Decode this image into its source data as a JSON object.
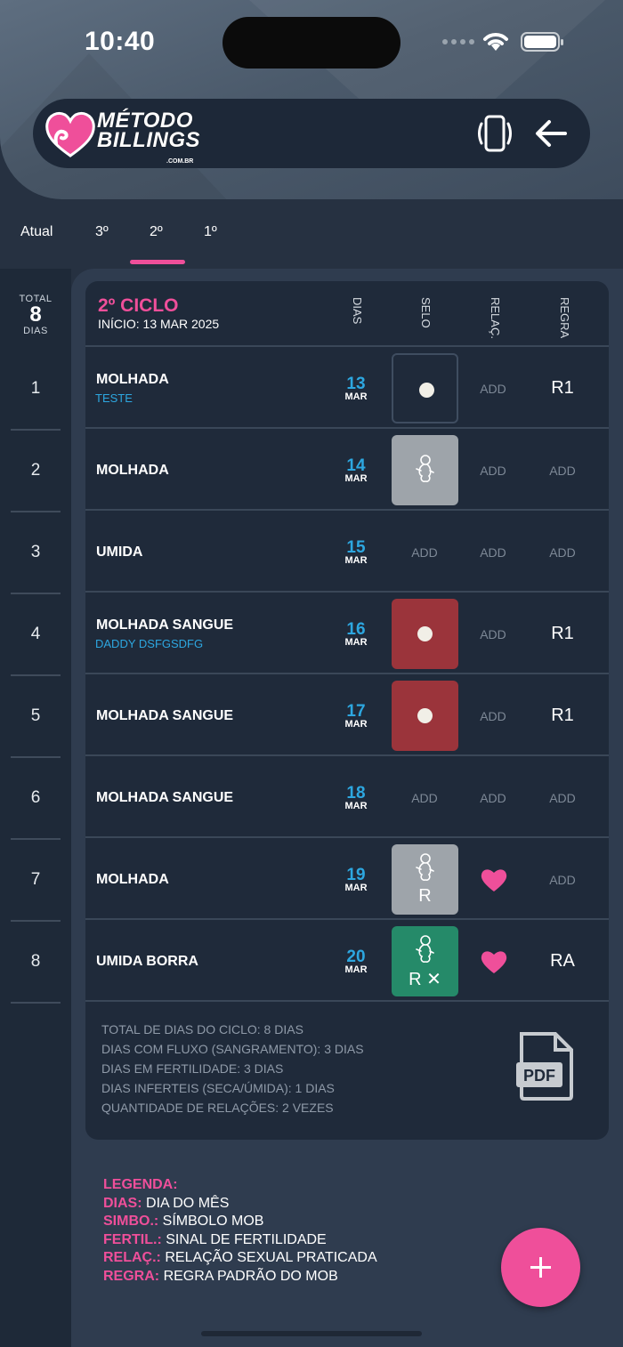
{
  "status": {
    "time": "10:40"
  },
  "app": {
    "logo_line1": "MÉTODO",
    "logo_line2": "BILLINGS",
    "logo_line3": ".COM.BR"
  },
  "tabs": [
    {
      "label": "Atual"
    },
    {
      "label": "3º"
    },
    {
      "label": "2º",
      "selected": true
    },
    {
      "label": "1º"
    }
  ],
  "sidebar": {
    "total_label": "TOTAL",
    "total_value": "8",
    "total_unit": "DIAS",
    "days": [
      "1",
      "2",
      "3",
      "4",
      "5",
      "6",
      "7",
      "8"
    ]
  },
  "cycle": {
    "title": "2º CICLO",
    "start": "INÍCIO: 13 MAR 2025",
    "headers": {
      "dias": "DIAS",
      "selo": "SELO",
      "relac": "RELAÇ.",
      "regra": "REGRA"
    },
    "add_label": "ADD",
    "rows": [
      {
        "name": "MOLHADA",
        "note": "TESTE",
        "day": "13",
        "month": "MAR",
        "seal": "empty-dot",
        "seal_text": "",
        "relation": "ADD",
        "rule": "R1"
      },
      {
        "name": "MOLHADA",
        "note": "",
        "day": "14",
        "month": "MAR",
        "seal": "gray-baby",
        "seal_text": "",
        "relation": "ADD",
        "rule": "ADD"
      },
      {
        "name": "UMIDA",
        "note": "",
        "day": "15",
        "month": "MAR",
        "seal": "none",
        "seal_text": "",
        "relation": "ADD",
        "rule": "ADD"
      },
      {
        "name": "MOLHADA SANGUE",
        "note": "DADDY DSFGSDFG",
        "day": "16",
        "month": "MAR",
        "seal": "red-dot",
        "seal_text": "",
        "relation": "ADD",
        "rule": "R1"
      },
      {
        "name": "MOLHADA SANGUE",
        "note": "",
        "day": "17",
        "month": "MAR",
        "seal": "red-dot",
        "seal_text": "",
        "relation": "ADD",
        "rule": "R1"
      },
      {
        "name": "MOLHADA SANGUE",
        "note": "",
        "day": "18",
        "month": "MAR",
        "seal": "none",
        "seal_text": "",
        "relation": "ADD",
        "rule": "ADD"
      },
      {
        "name": "MOLHADA",
        "note": "",
        "day": "19",
        "month": "MAR",
        "seal": "gray-baby",
        "seal_text": "R",
        "relation": "heart",
        "rule": "ADD"
      },
      {
        "name": "UMIDA BORRA",
        "note": "",
        "day": "20",
        "month": "MAR",
        "seal": "green-baby",
        "seal_text": "R ✕",
        "relation": "heart",
        "rule": "RA"
      }
    ],
    "summary": [
      "TOTAL DE DIAS DO CICLO: 8 DIAS",
      "DIAS COM FLUXO (SANGRAMENTO): 3 DIAS",
      "DIAS EM FERTILIDADE: 3 DIAS",
      "DIAS INFERTEIS (SECA/ÚMIDA): 1 DIAS",
      "QUANTIDADE DE RELAÇÕES: 2 VEZES"
    ],
    "pdf_label": "PDF"
  },
  "legend": {
    "title": "LEGENDA:",
    "items": [
      {
        "key": "DIAS:",
        "value": "DIA DO MÊS"
      },
      {
        "key": "SIMBO.:",
        "value": "SÍMBOLO MOB"
      },
      {
        "key": "FERTIL.:",
        "value": "SINAL DE FERTILIDADE"
      },
      {
        "key": "RELAÇ.:",
        "value": "RELAÇÃO SEXUAL PRATICADA"
      },
      {
        "key": "REGRA:",
        "value": "REGRA PADRÃO DO MOB"
      }
    ]
  },
  "colors": {
    "accent": "#ef4f9a",
    "date_blue": "#2da7e0",
    "seal_red": "#9b343b",
    "seal_gray": "#9ea4aa",
    "seal_green": "#258a69"
  },
  "icons": {
    "logo": "heart-hand-logo",
    "vibrate": "vibrate-icon",
    "back": "arrow-left-icon",
    "pdf": "pdf-icon",
    "fab": "plus-icon"
  }
}
